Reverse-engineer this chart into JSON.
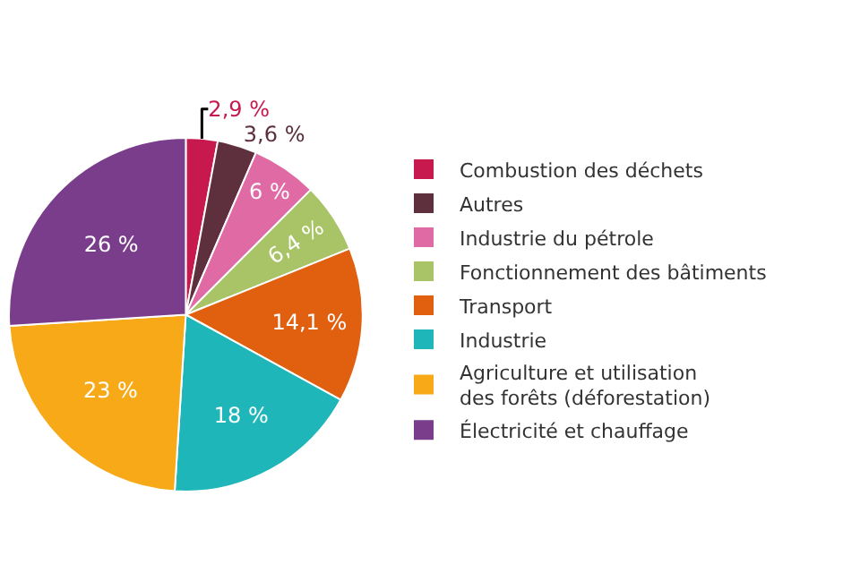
{
  "chart_data": {
    "type": "pie",
    "categories": [
      "Combustion des déchets",
      "Autres",
      "Industrie du pétrole",
      "Fonctionnement des bâtiments",
      "Transport",
      "Industrie",
      "Agriculture et utilisation des forêts (déforestation)",
      "Électricité et chauffage"
    ],
    "values": [
      2.9,
      3.6,
      6,
      6.4,
      14.1,
      18,
      23,
      26
    ],
    "value_labels": [
      "2,9 %",
      "3,6 %",
      "6 %",
      "6,4 %",
      "14,1 %",
      "18 %",
      "23 %",
      "26 %"
    ],
    "colors": [
      "#c8194f",
      "#5e2f3c",
      "#e06aa3",
      "#a8c466",
      "#e0600f",
      "#1eb6b8",
      "#f7a918",
      "#7a3d8c"
    ],
    "legend": "right"
  }
}
